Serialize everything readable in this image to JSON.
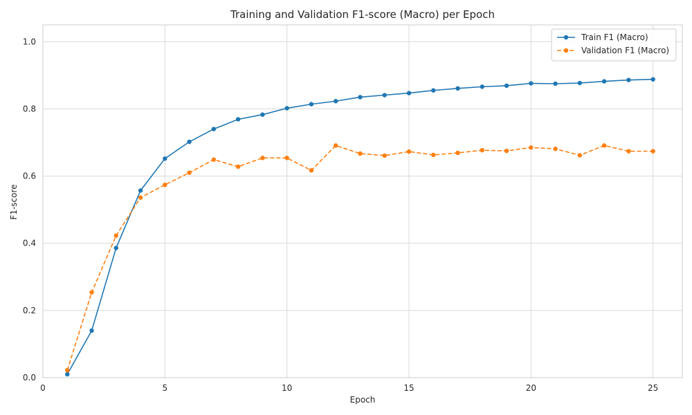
{
  "chart_data": {
    "type": "line",
    "title": "Training and Validation F1-score (Macro) per Epoch",
    "xlabel": "Epoch",
    "ylabel": "F1-score",
    "xlim": [
      0,
      26.2
    ],
    "ylim": [
      0,
      1.05
    ],
    "xticks": [
      0,
      5,
      10,
      15,
      20,
      25
    ],
    "xtick_labels": [
      "0",
      "5",
      "10",
      "15",
      "20",
      "25"
    ],
    "yticks": [
      0.0,
      0.2,
      0.4,
      0.6,
      0.8,
      1.0
    ],
    "ytick_labels": [
      "0.0",
      "0.2",
      "0.4",
      "0.6",
      "0.8",
      "1.0"
    ],
    "grid": true,
    "legend_position": "top-right",
    "x": [
      1,
      2,
      3,
      4,
      5,
      6,
      7,
      8,
      9,
      10,
      11,
      12,
      13,
      14,
      15,
      16,
      17,
      18,
      19,
      20,
      21,
      22,
      23,
      24,
      25
    ],
    "series": [
      {
        "name": "Train F1 (Macro)",
        "color": "#1f77b4",
        "style": "solid",
        "values": [
          0.01,
          0.14,
          0.386,
          0.557,
          0.652,
          0.702,
          0.74,
          0.769,
          0.783,
          0.802,
          0.814,
          0.823,
          0.835,
          0.841,
          0.847,
          0.855,
          0.861,
          0.866,
          0.869,
          0.876,
          0.875,
          0.877,
          0.882,
          0.886,
          0.888
        ]
      },
      {
        "name": "Validation F1 (Macro)",
        "color": "#ff7f0e",
        "style": "dashed",
        "values": [
          0.022,
          0.254,
          0.423,
          0.536,
          0.574,
          0.61,
          0.649,
          0.628,
          0.654,
          0.654,
          0.617,
          0.691,
          0.667,
          0.661,
          0.673,
          0.663,
          0.669,
          0.677,
          0.675,
          0.685,
          0.681,
          0.662,
          0.691,
          0.674,
          0.674
        ]
      }
    ]
  }
}
